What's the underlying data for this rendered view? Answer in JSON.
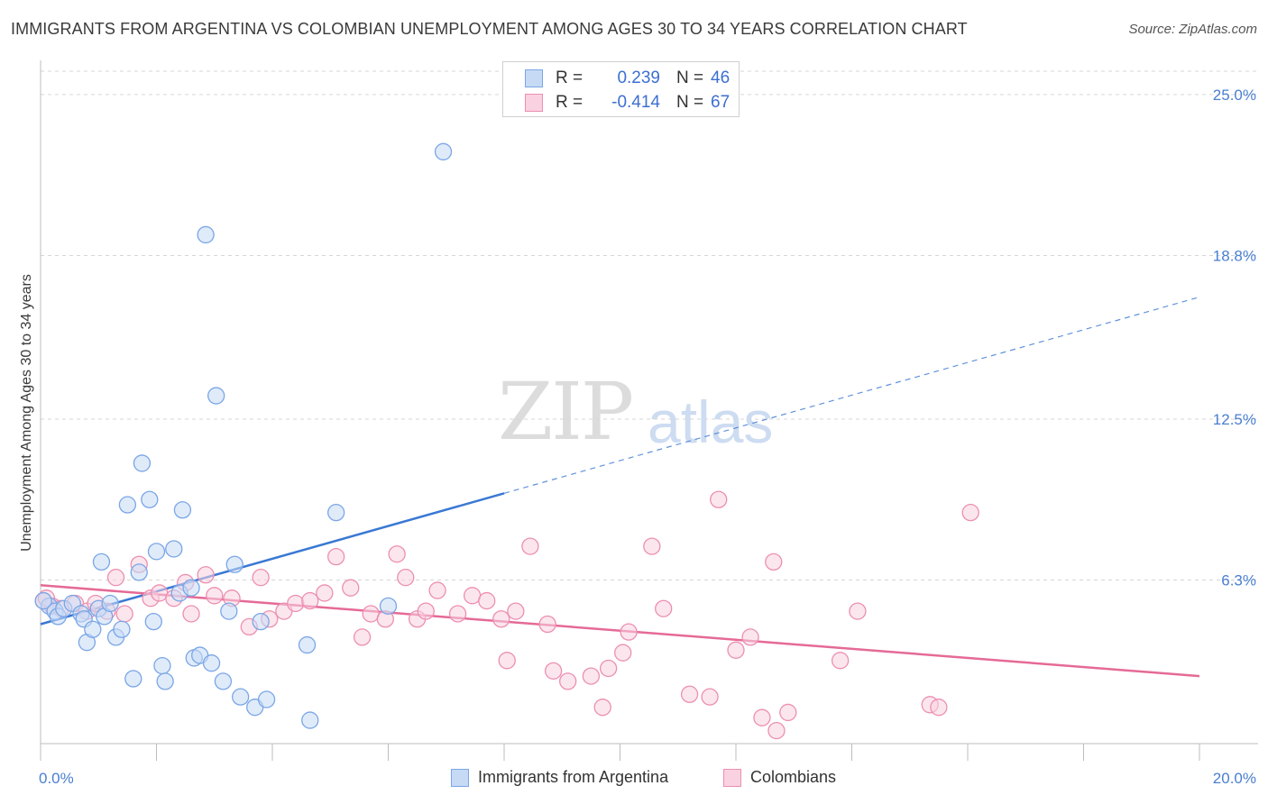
{
  "title": "IMMIGRANTS FROM ARGENTINA VS COLOMBIAN UNEMPLOYMENT AMONG AGES 30 TO 34 YEARS CORRELATION CHART",
  "source": "Source: ZipAtlas.com",
  "watermark": {
    "zip": "ZIP",
    "atlas": "atlas"
  },
  "legend": {
    "rows": [
      {
        "r_label": "R =",
        "r_value": "0.239",
        "n_label": "N =",
        "n_value": "46",
        "color": "#b7d0f3",
        "border": "#7aa6e6"
      },
      {
        "r_label": "R =",
        "r_value": "-0.414",
        "n_label": "N =",
        "n_value": "67",
        "color": "#f7c3d5",
        "border": "#ec8fb1"
      }
    ]
  },
  "bottom_legend": [
    {
      "label": "Immigrants from Argentina",
      "color": "#b7d0f3",
      "border": "#7aa6e6"
    },
    {
      "label": "Colombians",
      "color": "#f7c3d5",
      "border": "#ec8fb1"
    }
  ],
  "chart_data": {
    "type": "scatter",
    "xlabel": "",
    "ylabel": "Unemployment Among Ages 30 to 34 years",
    "xlim": [
      0,
      20
    ],
    "ylim": [
      0,
      25.9
    ],
    "x_tick_labels": [
      {
        "value": 0,
        "label": "0.0%"
      },
      {
        "value": 20,
        "label": "20.0%"
      }
    ],
    "y_tick_labels": [
      {
        "value": 6.3,
        "label": "6.3%"
      },
      {
        "value": 12.5,
        "label": "12.5%"
      },
      {
        "value": 18.8,
        "label": "18.8%"
      },
      {
        "value": 25.0,
        "label": "25.0%"
      }
    ],
    "series": [
      {
        "name": "Immigrants from Argentina",
        "color": "#7aa6e6",
        "fill": "#c6daf6",
        "points": [
          [
            0.15,
            5.3
          ],
          [
            0.25,
            5.1
          ],
          [
            0.3,
            4.9
          ],
          [
            0.4,
            5.2
          ],
          [
            0.55,
            5.4
          ],
          [
            0.7,
            5.0
          ],
          [
            0.75,
            4.8
          ],
          [
            0.8,
            3.9
          ],
          [
            0.9,
            4.4
          ],
          [
            1.0,
            5.2
          ],
          [
            1.05,
            7.0
          ],
          [
            1.1,
            4.9
          ],
          [
            1.2,
            5.4
          ],
          [
            1.3,
            4.1
          ],
          [
            1.4,
            4.4
          ],
          [
            1.5,
            9.2
          ],
          [
            1.6,
            2.5
          ],
          [
            1.7,
            6.6
          ],
          [
            1.75,
            10.8
          ],
          [
            1.88,
            9.4
          ],
          [
            1.95,
            4.7
          ],
          [
            2.0,
            7.4
          ],
          [
            2.1,
            3.0
          ],
          [
            2.15,
            2.4
          ],
          [
            2.3,
            7.5
          ],
          [
            2.4,
            5.8
          ],
          [
            2.45,
            9.0
          ],
          [
            2.6,
            6.0
          ],
          [
            2.65,
            3.3
          ],
          [
            2.75,
            3.4
          ],
          [
            2.85,
            19.6
          ],
          [
            2.95,
            3.1
          ],
          [
            3.03,
            13.4
          ],
          [
            3.15,
            2.4
          ],
          [
            3.25,
            5.1
          ],
          [
            3.35,
            6.9
          ],
          [
            3.45,
            1.8
          ],
          [
            3.7,
            1.4
          ],
          [
            3.8,
            4.7
          ],
          [
            3.9,
            1.7
          ],
          [
            4.6,
            3.8
          ],
          [
            4.65,
            0.9
          ],
          [
            5.1,
            8.9
          ],
          [
            6.0,
            5.3
          ],
          [
            6.95,
            22.8
          ],
          [
            0.05,
            5.5
          ]
        ]
      },
      {
        "name": "Colombians",
        "color": "#ec8fb1",
        "fill": "#f9d1e0",
        "points": [
          [
            0.05,
            5.5
          ],
          [
            0.2,
            5.3
          ],
          [
            0.35,
            5.2
          ],
          [
            0.6,
            5.4
          ],
          [
            0.8,
            5.1
          ],
          [
            0.95,
            5.4
          ],
          [
            1.15,
            5.1
          ],
          [
            1.3,
            6.4
          ],
          [
            1.45,
            5.0
          ],
          [
            1.7,
            6.9
          ],
          [
            1.9,
            5.6
          ],
          [
            2.05,
            5.8
          ],
          [
            2.3,
            5.6
          ],
          [
            2.5,
            6.2
          ],
          [
            2.6,
            5.0
          ],
          [
            2.85,
            6.5
          ],
          [
            3.0,
            5.7
          ],
          [
            3.3,
            5.6
          ],
          [
            3.6,
            4.5
          ],
          [
            3.8,
            6.4
          ],
          [
            3.95,
            4.8
          ],
          [
            4.2,
            5.1
          ],
          [
            4.4,
            5.4
          ],
          [
            4.65,
            5.5
          ],
          [
            4.9,
            5.8
          ],
          [
            5.1,
            7.2
          ],
          [
            5.35,
            6.0
          ],
          [
            5.55,
            4.1
          ],
          [
            5.7,
            5.0
          ],
          [
            5.95,
            4.8
          ],
          [
            6.15,
            7.3
          ],
          [
            6.3,
            6.4
          ],
          [
            6.5,
            4.8
          ],
          [
            6.65,
            5.1
          ],
          [
            6.85,
            5.9
          ],
          [
            7.2,
            5.0
          ],
          [
            7.45,
            5.7
          ],
          [
            7.7,
            5.5
          ],
          [
            7.95,
            4.8
          ],
          [
            8.05,
            3.2
          ],
          [
            8.2,
            5.1
          ],
          [
            8.45,
            7.6
          ],
          [
            8.75,
            4.6
          ],
          [
            8.85,
            2.8
          ],
          [
            9.1,
            2.4
          ],
          [
            9.5,
            2.6
          ],
          [
            9.7,
            1.4
          ],
          [
            9.8,
            2.9
          ],
          [
            10.05,
            3.5
          ],
          [
            10.15,
            4.3
          ],
          [
            10.55,
            7.6
          ],
          [
            10.75,
            5.2
          ],
          [
            11.2,
            1.9
          ],
          [
            11.55,
            1.8
          ],
          [
            11.7,
            9.4
          ],
          [
            12.0,
            3.6
          ],
          [
            12.25,
            4.1
          ],
          [
            12.45,
            1.0
          ],
          [
            12.65,
            7.0
          ],
          [
            12.7,
            0.5
          ],
          [
            12.9,
            1.2
          ],
          [
            13.8,
            3.2
          ],
          [
            14.1,
            5.1
          ],
          [
            15.35,
            1.5
          ],
          [
            15.5,
            1.4
          ],
          [
            16.05,
            8.9
          ],
          [
            0.1,
            5.6
          ]
        ]
      }
    ],
    "trend_lines": [
      {
        "series": "Immigrants from Argentina",
        "color": "#3a78d4",
        "x0": 0,
        "y0": 4.6,
        "x_solid_end": 8.0,
        "x1": 20,
        "y1": 17.2
      },
      {
        "series": "Colombians",
        "color": "#e56a96",
        "x0": 0,
        "y0": 6.1,
        "x1": 20,
        "y1": 2.6
      }
    ]
  }
}
